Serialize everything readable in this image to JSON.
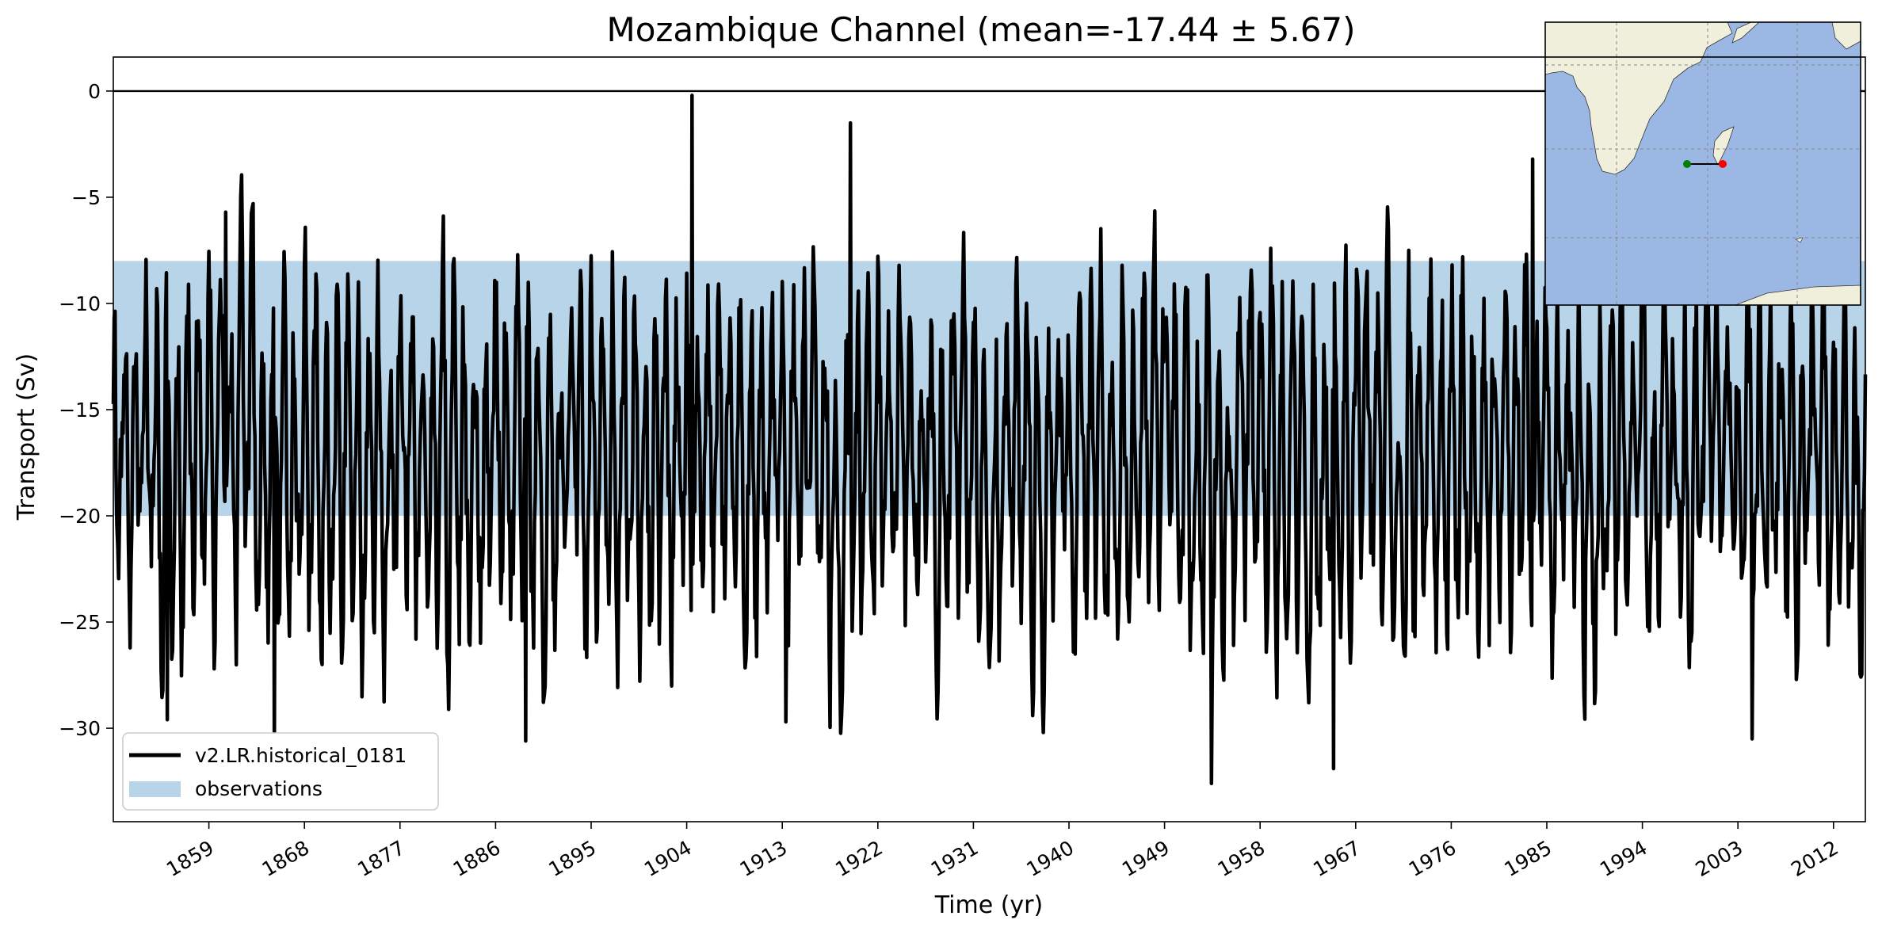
{
  "chart_data": {
    "type": "line",
    "title": "Mozambique Channel (mean=-17.44 ± 5.67)",
    "xlabel": "Time (yr)",
    "ylabel": "Transport (Sv)",
    "xlim": [
      1850,
      2015
    ],
    "ylim": [
      -34.4,
      1.6
    ],
    "x_ticks": [
      "1859",
      "1868",
      "1877",
      "1886",
      "1895",
      "1904",
      "1913",
      "1922",
      "1931",
      "1940",
      "1949",
      "1958",
      "1967",
      "1976",
      "1985",
      "1994",
      "2003",
      "2012"
    ],
    "y_ticks": [
      "0",
      "−5",
      "−10",
      "−15",
      "−20",
      "−25",
      "−30"
    ],
    "zero_line": 0,
    "observations_band": {
      "label": "observations",
      "y_min": -20,
      "y_max": -8,
      "color": "#b8d4e9"
    },
    "series": [
      {
        "name": "v2.LR.historical_0181",
        "color": "#000000",
        "mean": -17.44,
        "std": 5.67,
        "start_year": 1850,
        "samples_per_year": 12,
        "values_description": "monthly transport",
        "notable_points": [
          {
            "x": 1855.1,
            "y": -29.6
          },
          {
            "x": 1860.6,
            "y": -5.7
          },
          {
            "x": 1863.2,
            "y": -5.3
          },
          {
            "x": 1865.2,
            "y": -31.2
          },
          {
            "x": 1888.8,
            "y": -30.6
          },
          {
            "x": 1904.5,
            "y": -0.2
          },
          {
            "x": 1913.3,
            "y": -29.7
          },
          {
            "x": 1919.4,
            "y": -1.5
          },
          {
            "x": 1953.4,
            "y": -32.6
          },
          {
            "x": 1964.9,
            "y": -31.9
          },
          {
            "x": 1983.7,
            "y": -3.2
          },
          {
            "x": 2004.3,
            "y": -30.5
          }
        ]
      }
    ],
    "legend": {
      "placement": "lower-left",
      "entries": [
        "v2.LR.historical_0181",
        "observations"
      ]
    },
    "inset_map": {
      "placement": "top-right",
      "ocean_color": "#9bb8e4",
      "land_color": "#efefdc",
      "section_start_color": "#008000",
      "section_end_color": "#ff0000"
    }
  }
}
